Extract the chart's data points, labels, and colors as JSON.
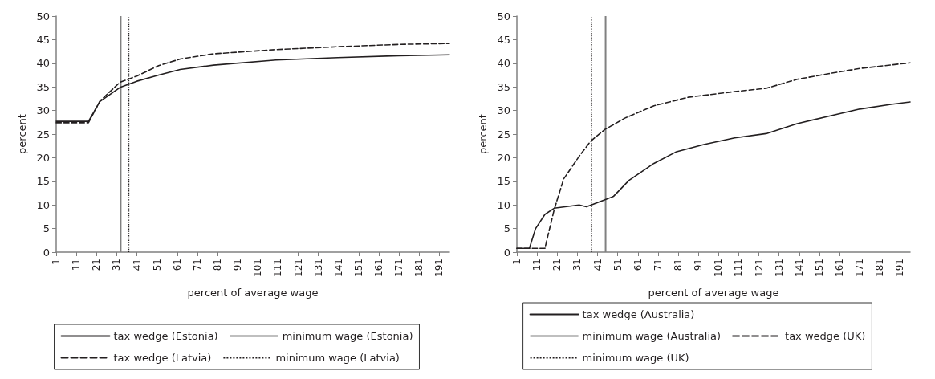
{
  "chart_data": [
    {
      "type": "line",
      "xlabel": "percent of average wage",
      "ylabel": "percent",
      "xlim": [
        1,
        196
      ],
      "ylim": [
        0,
        50
      ],
      "xticks": [
        1,
        11,
        21,
        31,
        41,
        51,
        61,
        71,
        81,
        91,
        101,
        111,
        121,
        131,
        141,
        151,
        161,
        171,
        181,
        191
      ],
      "yticks": [
        0,
        5,
        10,
        15,
        20,
        25,
        30,
        35,
        40,
        45,
        50
      ],
      "grid": false,
      "legend": "bottom",
      "marker": "none",
      "series": [
        {
          "name": "tax wedge (Estonia)",
          "color": "#231f20",
          "line_style": "solid",
          "x": [
            1,
            17,
            22.7,
            32.7,
            41,
            51.8,
            62.5,
            79,
            110,
            140.6,
            171,
            196
          ],
          "values": [
            27.7,
            27.7,
            31.9,
            34.9,
            36.2,
            37.5,
            38.7,
            39.6,
            40.7,
            41.2,
            41.6,
            41.8
          ]
        },
        {
          "name": "tax wedge (Latvia)",
          "color": "#231f20",
          "line_style": "dashed",
          "x": [
            1,
            17,
            22.7,
            32.7,
            41,
            51.8,
            62.5,
            79,
            110,
            140.6,
            171,
            196
          ],
          "values": [
            27.4,
            27.4,
            32,
            36,
            37.3,
            39.5,
            40.9,
            42,
            42.9,
            43.5,
            44,
            44.2
          ]
        }
      ],
      "ref_lines": [
        {
          "axis": "x",
          "value": 33,
          "label": "minimum wage (Estonia)",
          "color": "#808080",
          "line_style": "solid"
        },
        {
          "axis": "x",
          "value": 37,
          "label": "minimum wage (Latvia)",
          "color": "#231f20",
          "line_style": "dotted"
        }
      ]
    },
    {
      "type": "line",
      "xlabel": "percent of average wage",
      "ylabel": "percent",
      "xlim": [
        1,
        196
      ],
      "ylim": [
        0,
        50
      ],
      "xticks": [
        1,
        11,
        21,
        31,
        41,
        51,
        61,
        71,
        81,
        91,
        101,
        111,
        121,
        131,
        141,
        151,
        161,
        171,
        181,
        191
      ],
      "yticks": [
        0,
        5,
        10,
        15,
        20,
        25,
        30,
        35,
        40,
        45,
        50
      ],
      "grid": false,
      "legend": "bottom",
      "marker": "none",
      "series": [
        {
          "name": "tax wedge (Australia)",
          "color": "#231f20",
          "line_style": "solid",
          "x": [
            1,
            7.2,
            10.3,
            14.9,
            19.5,
            31.9,
            35.5,
            44.7,
            48.9,
            56.6,
            69,
            79.8,
            93.7,
            109,
            124.6,
            140,
            155.6,
            171,
            186.5,
            196
          ],
          "values": [
            0.8,
            0.8,
            5,
            8,
            9.3,
            10,
            9.6,
            11.1,
            11.8,
            15.2,
            18.8,
            21.2,
            22.8,
            24.2,
            25.1,
            27.2,
            28.8,
            30.3,
            31.3,
            31.8
          ]
        },
        {
          "name": "tax wedge (UK)",
          "color": "#231f20",
          "line_style": "dashed",
          "x": [
            1,
            14.9,
            19.5,
            24.2,
            31.9,
            37.6,
            44.7,
            55.1,
            69,
            86,
            109,
            124.6,
            140,
            155.6,
            171,
            196
          ],
          "values": [
            0.8,
            0.8,
            9,
            15.5,
            20.3,
            23.5,
            26,
            28.5,
            31,
            32.8,
            34,
            34.7,
            36.6,
            37.8,
            38.9,
            40.1
          ]
        }
      ],
      "ref_lines": [
        {
          "axis": "x",
          "value": 45,
          "label": "minimum wage (Australia)",
          "color": "#808080",
          "line_style": "solid"
        },
        {
          "axis": "x",
          "value": 38,
          "label": "minimum wage (UK)",
          "color": "#231f20",
          "line_style": "dotted"
        }
      ]
    }
  ]
}
